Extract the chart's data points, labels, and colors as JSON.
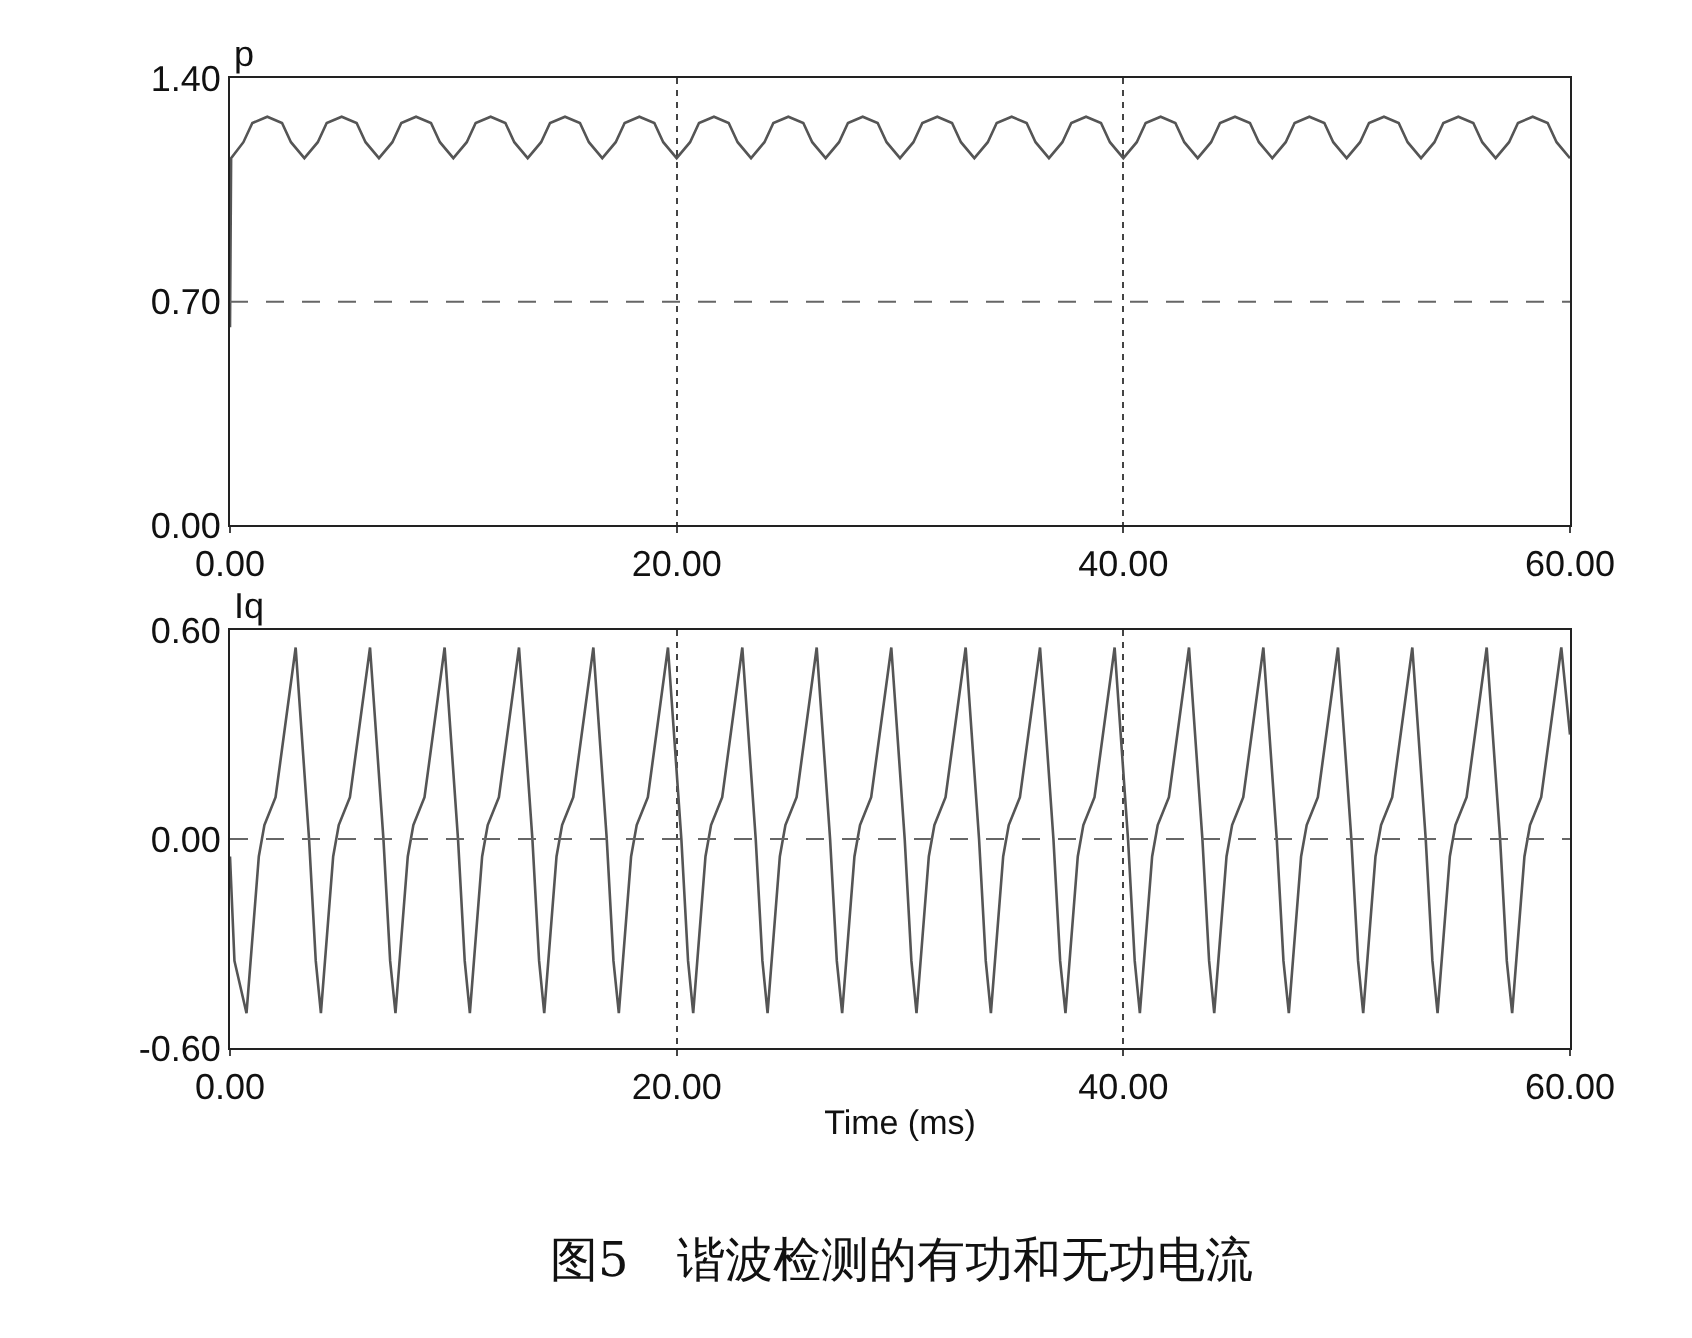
{
  "chart_data": [
    {
      "type": "line",
      "ylabel": "p",
      "xlim": [
        0,
        60
      ],
      "ylim": [
        0,
        1.4
      ],
      "xticks": [
        {
          "value": 0,
          "label": "0.00"
        },
        {
          "value": 20,
          "label": "20.00"
        },
        {
          "value": 40,
          "label": "40.00"
        },
        {
          "value": 60,
          "label": "60.00"
        }
      ],
      "yticks": [
        {
          "value": 0,
          "label": "0.00"
        },
        {
          "value": 0.7,
          "label": "0.70"
        },
        {
          "value": 1.4,
          "label": "1.40"
        }
      ],
      "grid": "x",
      "marker": "none",
      "line_style": "solid",
      "ref_lines": [
        {
          "axis": "y",
          "value": 0.7,
          "color": "#666666",
          "line_style": "dashed"
        }
      ],
      "x": [
        0,
        0.05,
        0.6,
        1.0,
        1.67,
        2.33,
        2.73,
        3.33,
        3.93,
        4.33,
        5.0,
        5.67,
        6.07,
        6.67,
        7.27,
        7.67,
        8.33,
        9.0,
        9.4,
        10,
        10.6,
        11,
        11.67,
        12.33,
        12.73,
        13.33,
        13.93,
        14.33,
        15,
        15.67,
        16.07,
        16.67,
        17.27,
        17.67,
        18.33,
        19,
        19.4,
        20,
        20.6,
        21,
        21.67,
        22.33,
        22.73,
        23.33,
        23.93,
        24.33,
        25,
        25.67,
        26.07,
        26.67,
        27.27,
        27.67,
        28.33,
        29,
        29.4,
        30,
        30.6,
        31,
        31.67,
        32.33,
        32.73,
        33.33,
        33.93,
        34.33,
        35,
        35.67,
        36.07,
        36.67,
        37.27,
        37.67,
        38.33,
        39,
        39.4,
        40,
        40.6,
        41,
        41.67,
        42.33,
        42.73,
        43.33,
        43.93,
        44.33,
        45,
        45.67,
        46.07,
        46.67,
        47.27,
        47.67,
        48.33,
        49,
        49.4,
        50,
        50.6,
        51,
        51.67,
        52.33,
        52.73,
        53.33,
        53.93,
        54.33,
        55,
        55.67,
        56.07,
        56.67,
        57.27,
        57.67,
        58.33,
        59,
        59.4,
        60
      ],
      "series": [
        {
          "color": "#555555",
          "values": [
            0.62,
            1.15,
            1.2,
            1.26,
            1.28,
            1.26,
            1.2,
            1.15,
            1.2,
            1.26,
            1.28,
            1.26,
            1.2,
            1.15,
            1.2,
            1.26,
            1.28,
            1.26,
            1.2,
            1.15,
            1.2,
            1.26,
            1.28,
            1.26,
            1.2,
            1.15,
            1.2,
            1.26,
            1.28,
            1.26,
            1.2,
            1.15,
            1.2,
            1.26,
            1.28,
            1.26,
            1.2,
            1.15,
            1.2,
            1.26,
            1.28,
            1.26,
            1.2,
            1.15,
            1.2,
            1.26,
            1.28,
            1.26,
            1.2,
            1.15,
            1.2,
            1.26,
            1.28,
            1.26,
            1.2,
            1.15,
            1.2,
            1.26,
            1.28,
            1.26,
            1.2,
            1.15,
            1.2,
            1.26,
            1.28,
            1.26,
            1.2,
            1.15,
            1.2,
            1.26,
            1.28,
            1.26,
            1.2,
            1.15,
            1.2,
            1.26,
            1.28,
            1.26,
            1.2,
            1.15,
            1.2,
            1.26,
            1.28,
            1.26,
            1.2,
            1.15,
            1.2,
            1.26,
            1.28,
            1.26,
            1.2,
            1.15,
            1.2,
            1.26,
            1.28,
            1.26,
            1.2,
            1.15,
            1.2,
            1.26,
            1.28,
            1.26,
            1.2,
            1.15,
            1.2,
            1.26,
            1.28,
            1.26,
            1.2,
            1.15
          ]
        }
      ]
    },
    {
      "type": "line",
      "ylabel": "Iq",
      "xlabel": "Time (ms)",
      "xlim": [
        0,
        60
      ],
      "ylim": [
        -0.6,
        0.6
      ],
      "xticks": [
        {
          "value": 0,
          "label": "0.00"
        },
        {
          "value": 20,
          "label": "20.00"
        },
        {
          "value": 40,
          "label": "40.00"
        },
        {
          "value": 60,
          "label": "60.00"
        }
      ],
      "yticks": [
        {
          "value": -0.6,
          "label": "-0.60"
        },
        {
          "value": 0,
          "label": "0.00"
        },
        {
          "value": 0.6,
          "label": "0.60"
        }
      ],
      "grid": "x",
      "marker": "none",
      "line_style": "solid",
      "ref_lines": [
        {
          "axis": "y",
          "value": 0,
          "color": "#666666",
          "line_style": "dashed"
        }
      ],
      "annotations": [
        "图5　谐波检测的有功和无功电流"
      ],
      "x": [
        0,
        0.2,
        0.74,
        1.29,
        1.54,
        2.04,
        2.94,
        3.54,
        3.84,
        4.07,
        4.62,
        4.87,
        5.37,
        6.27,
        6.87,
        7.17,
        7.41,
        7.96,
        8.21,
        8.71,
        9.61,
        10.21,
        10.51,
        10.74,
        11.29,
        11.54,
        12.04,
        12.94,
        13.54,
        13.84,
        14.07,
        14.62,
        14.87,
        15.37,
        16.27,
        16.87,
        17.17,
        17.41,
        17.96,
        18.21,
        18.71,
        19.61,
        20.21,
        20.51,
        20.74,
        21.29,
        21.54,
        22.04,
        22.94,
        23.54,
        23.84,
        24.07,
        24.62,
        24.87,
        25.37,
        26.27,
        26.87,
        27.17,
        27.41,
        27.96,
        28.21,
        28.71,
        29.61,
        30.21,
        30.51,
        30.74,
        31.29,
        31.54,
        32.04,
        32.94,
        33.54,
        33.84,
        34.07,
        34.62,
        34.87,
        35.37,
        36.27,
        36.87,
        37.17,
        37.41,
        37.96,
        38.21,
        38.71,
        39.61,
        40.21,
        40.51,
        40.74,
        41.29,
        41.54,
        42.04,
        42.94,
        43.54,
        43.84,
        44.07,
        44.62,
        44.87,
        45.37,
        46.27,
        46.87,
        47.17,
        47.41,
        47.96,
        48.21,
        48.71,
        49.61,
        50.21,
        50.51,
        50.74,
        51.29,
        51.54,
        52.04,
        52.94,
        53.54,
        53.84,
        54.07,
        54.62,
        54.87,
        55.37,
        56.27,
        56.87,
        57.17,
        57.41,
        57.96,
        58.21,
        58.71,
        59.61,
        60
      ],
      "series": [
        {
          "color": "#555555",
          "values": [
            -0.05,
            -0.35,
            -0.5,
            -0.05,
            0.04,
            0.12,
            0.55,
            0.0,
            -0.35,
            -0.5,
            -0.05,
            0.04,
            0.12,
            0.55,
            0.0,
            -0.35,
            -0.5,
            -0.05,
            0.04,
            0.12,
            0.55,
            0.0,
            -0.35,
            -0.5,
            -0.05,
            0.04,
            0.12,
            0.55,
            0.0,
            -0.35,
            -0.5,
            -0.05,
            0.04,
            0.12,
            0.55,
            0.0,
            -0.35,
            -0.5,
            -0.05,
            0.04,
            0.12,
            0.55,
            0.0,
            -0.35,
            -0.5,
            -0.05,
            0.04,
            0.12,
            0.55,
            0.0,
            -0.35,
            -0.5,
            -0.05,
            0.04,
            0.12,
            0.55,
            0.0,
            -0.35,
            -0.5,
            -0.05,
            0.04,
            0.12,
            0.55,
            0.0,
            -0.35,
            -0.5,
            -0.05,
            0.04,
            0.12,
            0.55,
            0.0,
            -0.35,
            -0.5,
            -0.05,
            0.04,
            0.12,
            0.55,
            0.0,
            -0.35,
            -0.5,
            -0.05,
            0.04,
            0.12,
            0.55,
            0.0,
            -0.35,
            -0.5,
            -0.05,
            0.04,
            0.12,
            0.55,
            0.0,
            -0.35,
            -0.5,
            -0.05,
            0.04,
            0.12,
            0.55,
            0.0,
            -0.35,
            -0.5,
            -0.05,
            0.04,
            0.12,
            0.55,
            0.0,
            -0.35,
            -0.5,
            -0.05,
            0.04,
            0.12,
            0.55,
            0.0,
            -0.35,
            -0.5,
            -0.05,
            0.04,
            0.12,
            0.55,
            0.0,
            -0.35,
            -0.5,
            -0.05,
            0.04,
            0.12,
            0.55,
            0.3
          ]
        }
      ]
    }
  ]
}
